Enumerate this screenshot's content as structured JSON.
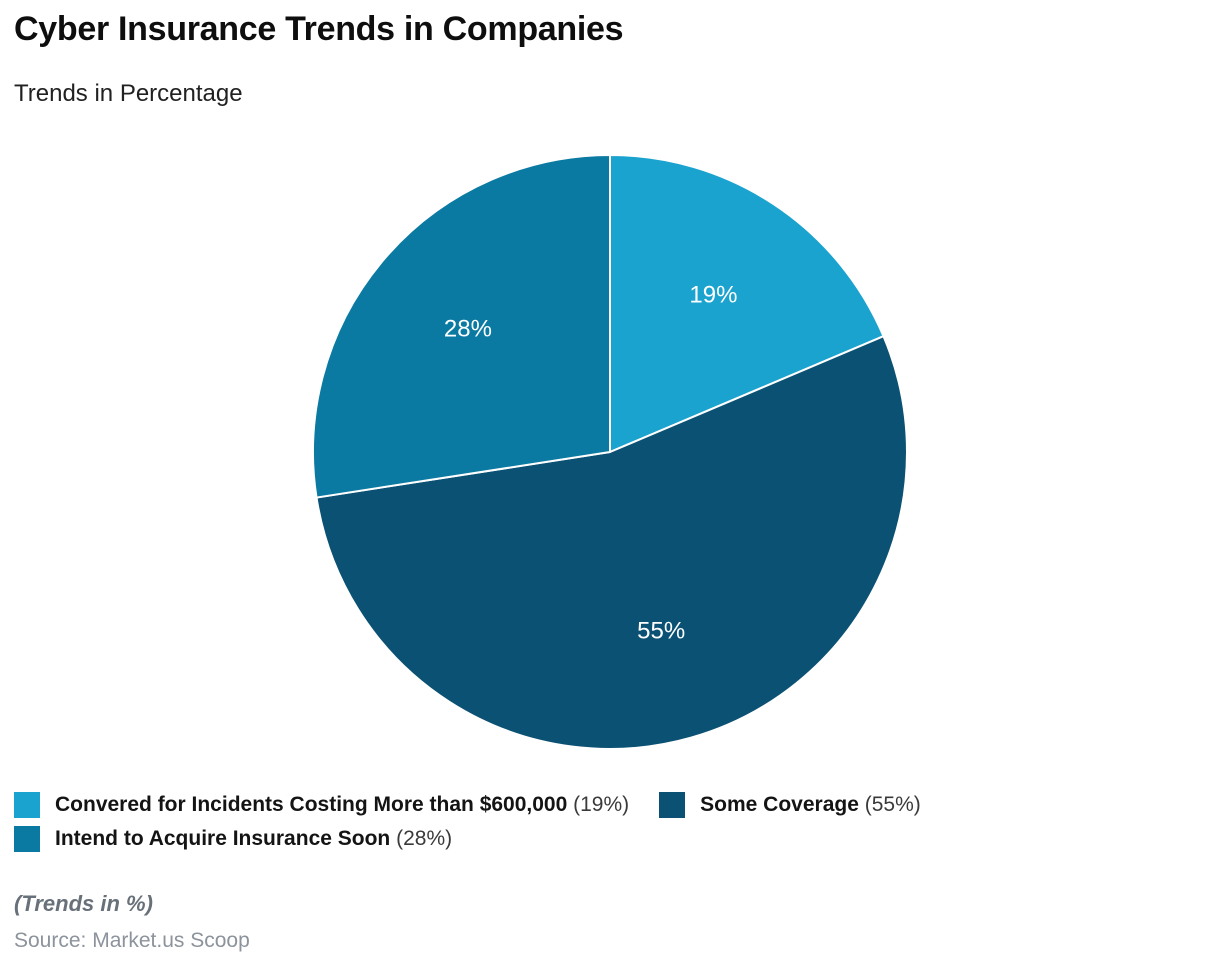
{
  "chart_data": {
    "type": "pie",
    "title": "Cyber Insurance Trends in Companies",
    "subtitle": "Trends in Percentage",
    "direction": "clockwise",
    "start_angle_deg": 0,
    "value_suffix": "%",
    "label_radius_fraction": 0.63,
    "slice_label_color": "#ffffff",
    "separator_color": "#ffffff",
    "slices": [
      {
        "label": "Convered for Incidents Costing More than $600,000",
        "value": 19,
        "color": "#1BA3CF"
      },
      {
        "label": "Some Coverage",
        "value": 55,
        "color": "#0B5173"
      },
      {
        "label": "Intend to Acquire Insurance Soon",
        "value": 28,
        "color": "#0A7AA3"
      }
    ]
  },
  "footer": {
    "note": "(Trends in %)",
    "source": "Source: Market.us Scoop"
  }
}
